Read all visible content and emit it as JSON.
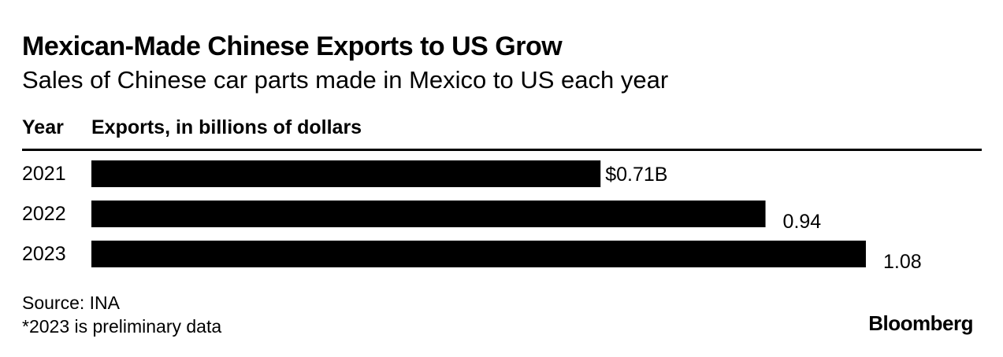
{
  "header": {
    "title": "Mexican-Made Chinese Exports to US Grow",
    "subtitle": "Sales of Chinese car parts made in Mexico to US each year"
  },
  "columns": {
    "year": "Year",
    "exports": "Exports, in billions of dollars"
  },
  "footer": {
    "source": "Source: INA",
    "note": "*2023 is preliminary data",
    "brand": "Bloomberg"
  },
  "colors": {
    "bar": "#000000",
    "text": "#000000",
    "background": "#ffffff"
  },
  "chart_data": {
    "type": "bar",
    "orientation": "horizontal",
    "title": "Mexican-Made Chinese Exports to US Grow",
    "subtitle": "Sales of Chinese car parts made in Mexico to US each year",
    "xlabel": "Exports, in billions of dollars",
    "ylabel": "Year",
    "categories": [
      "2021",
      "2022",
      "2023"
    ],
    "values": [
      0.71,
      0.94,
      1.08
    ],
    "value_labels": [
      "$0.71B",
      "0.94",
      "1.08"
    ],
    "xlim": [
      0,
      1.28
    ],
    "grid": false
  }
}
